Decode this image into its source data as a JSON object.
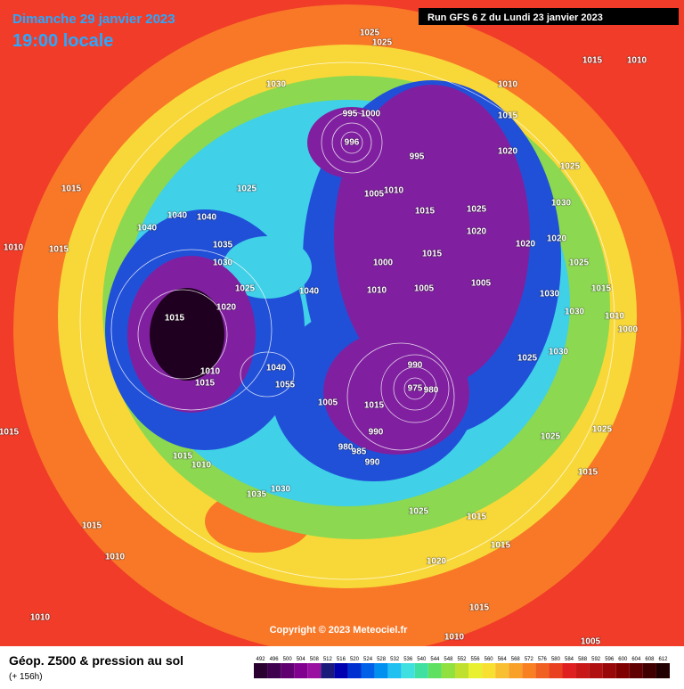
{
  "header": {
    "date": "Dimanche 29 janvier 2023",
    "time": "19:00 locale",
    "run": "Run GFS 6 Z du Lundi 23 janvier 2023"
  },
  "copyright": "Copyright © 2023 Meteociel.fr",
  "footer": {
    "title": "Géop. Z500 & pression au sol",
    "lead": "(+ 156h)"
  },
  "isobar_labels": [
    1025,
    1025,
    1030,
    1015,
    1010,
    1010,
    995,
    1000,
    1015,
    996,
    995,
    1020,
    1025,
    1025,
    1005,
    1010,
    1015,
    1040,
    1040,
    1015,
    1025,
    1030,
    1040,
    1020,
    1010,
    1015,
    1035,
    1020,
    1020,
    1030,
    1000,
    1015,
    1025,
    1025,
    1040,
    1010,
    1005,
    1005,
    1030,
    1015,
    1015,
    1020,
    1030,
    1010,
    1000,
    1025,
    1030,
    990,
    1040,
    1010,
    1015,
    1055,
    975,
    980,
    1005,
    1015,
    990,
    1015,
    1025,
    1025,
    980,
    985,
    1015,
    990,
    1010,
    1015,
    1035,
    1030,
    1025,
    1015,
    1015,
    1010,
    1015,
    1020,
    1010,
    1015,
    1010,
    1005
  ],
  "scale": {
    "values": [
      492,
      496,
      500,
      504,
      508,
      512,
      516,
      520,
      524,
      528,
      532,
      536,
      540,
      544,
      548,
      552,
      556,
      560,
      564,
      568,
      572,
      576,
      580,
      584,
      588,
      592,
      596,
      600,
      604,
      608,
      612
    ],
    "colors": [
      "#2a0030",
      "#400050",
      "#600070",
      "#800090",
      "#9a10a0",
      "#1a1a7a",
      "#0000b0",
      "#0030d0",
      "#0060e8",
      "#0090f0",
      "#20c0f0",
      "#40e0e0",
      "#40e0a0",
      "#60e060",
      "#90e040",
      "#c0e030",
      "#e8f030",
      "#f8e030",
      "#f8c030",
      "#f8a028",
      "#f88020",
      "#f06020",
      "#e84020",
      "#e02020",
      "#c81818",
      "#b01010",
      "#980808",
      "#800000",
      "#600000",
      "#400000",
      "#200000"
    ]
  }
}
